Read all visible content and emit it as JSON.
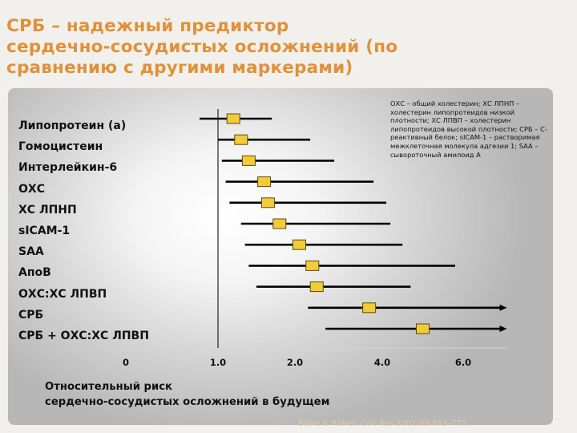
{
  "slide": {
    "title": "СРБ – надежный предиктор\nсердечно-сосудистых осложнений (по\nсравнению с другими маркерами)",
    "note": "ОХС – общий холестерин; ХС ЛПНП – холестерин липопротеидов низкой плотности; ХС ЛПВП – холестерин липопротеидов высокой плотности; СРБ – С-реактивный белок; sICAM-1 – растворимая межклеточная молекула адгезии 1;  SAA – сывороточный амилоид А",
    "x_title": "Относительный риск\nсердечно-сосудистых осложнений в будущем",
    "citation": "Blake & Ridker. Circ Res 2001;89:763–771"
  },
  "chart_data": {
    "type": "forest",
    "categories": [
      "Липопротеин (а)",
      "Гомоцистеин",
      "Интерлейкин-6",
      "ОХС",
      "ХС ЛПНП",
      "sICAM-1",
      "SAA",
      "АпоB",
      "ОХС:ХС ЛПВП",
      "СРБ",
      "СРБ + ОХС:ХС ЛПВП"
    ],
    "estimates": [
      1.2,
      1.3,
      1.4,
      1.6,
      1.65,
      1.8,
      2.1,
      2.4,
      2.5,
      3.7,
      5.0
    ],
    "ci_lower": [
      0.8,
      1.0,
      1.05,
      1.1,
      1.15,
      1.3,
      1.35,
      1.4,
      1.5,
      2.3,
      2.7
    ],
    "ci_upper": [
      1.7,
      2.35,
      2.9,
      3.8,
      4.1,
      4.2,
      4.5,
      5.8,
      4.7,
      7.0,
      7.0
    ],
    "arrow_right": [
      false,
      false,
      false,
      false,
      false,
      false,
      false,
      false,
      false,
      true,
      true
    ],
    "x_ticks": [
      "0",
      "1.0",
      "2.0",
      "4.0",
      "6.0"
    ],
    "reference_line": 1.0,
    "marker_color": "#f2cc38",
    "marker_stroke": "#5a4a10"
  }
}
